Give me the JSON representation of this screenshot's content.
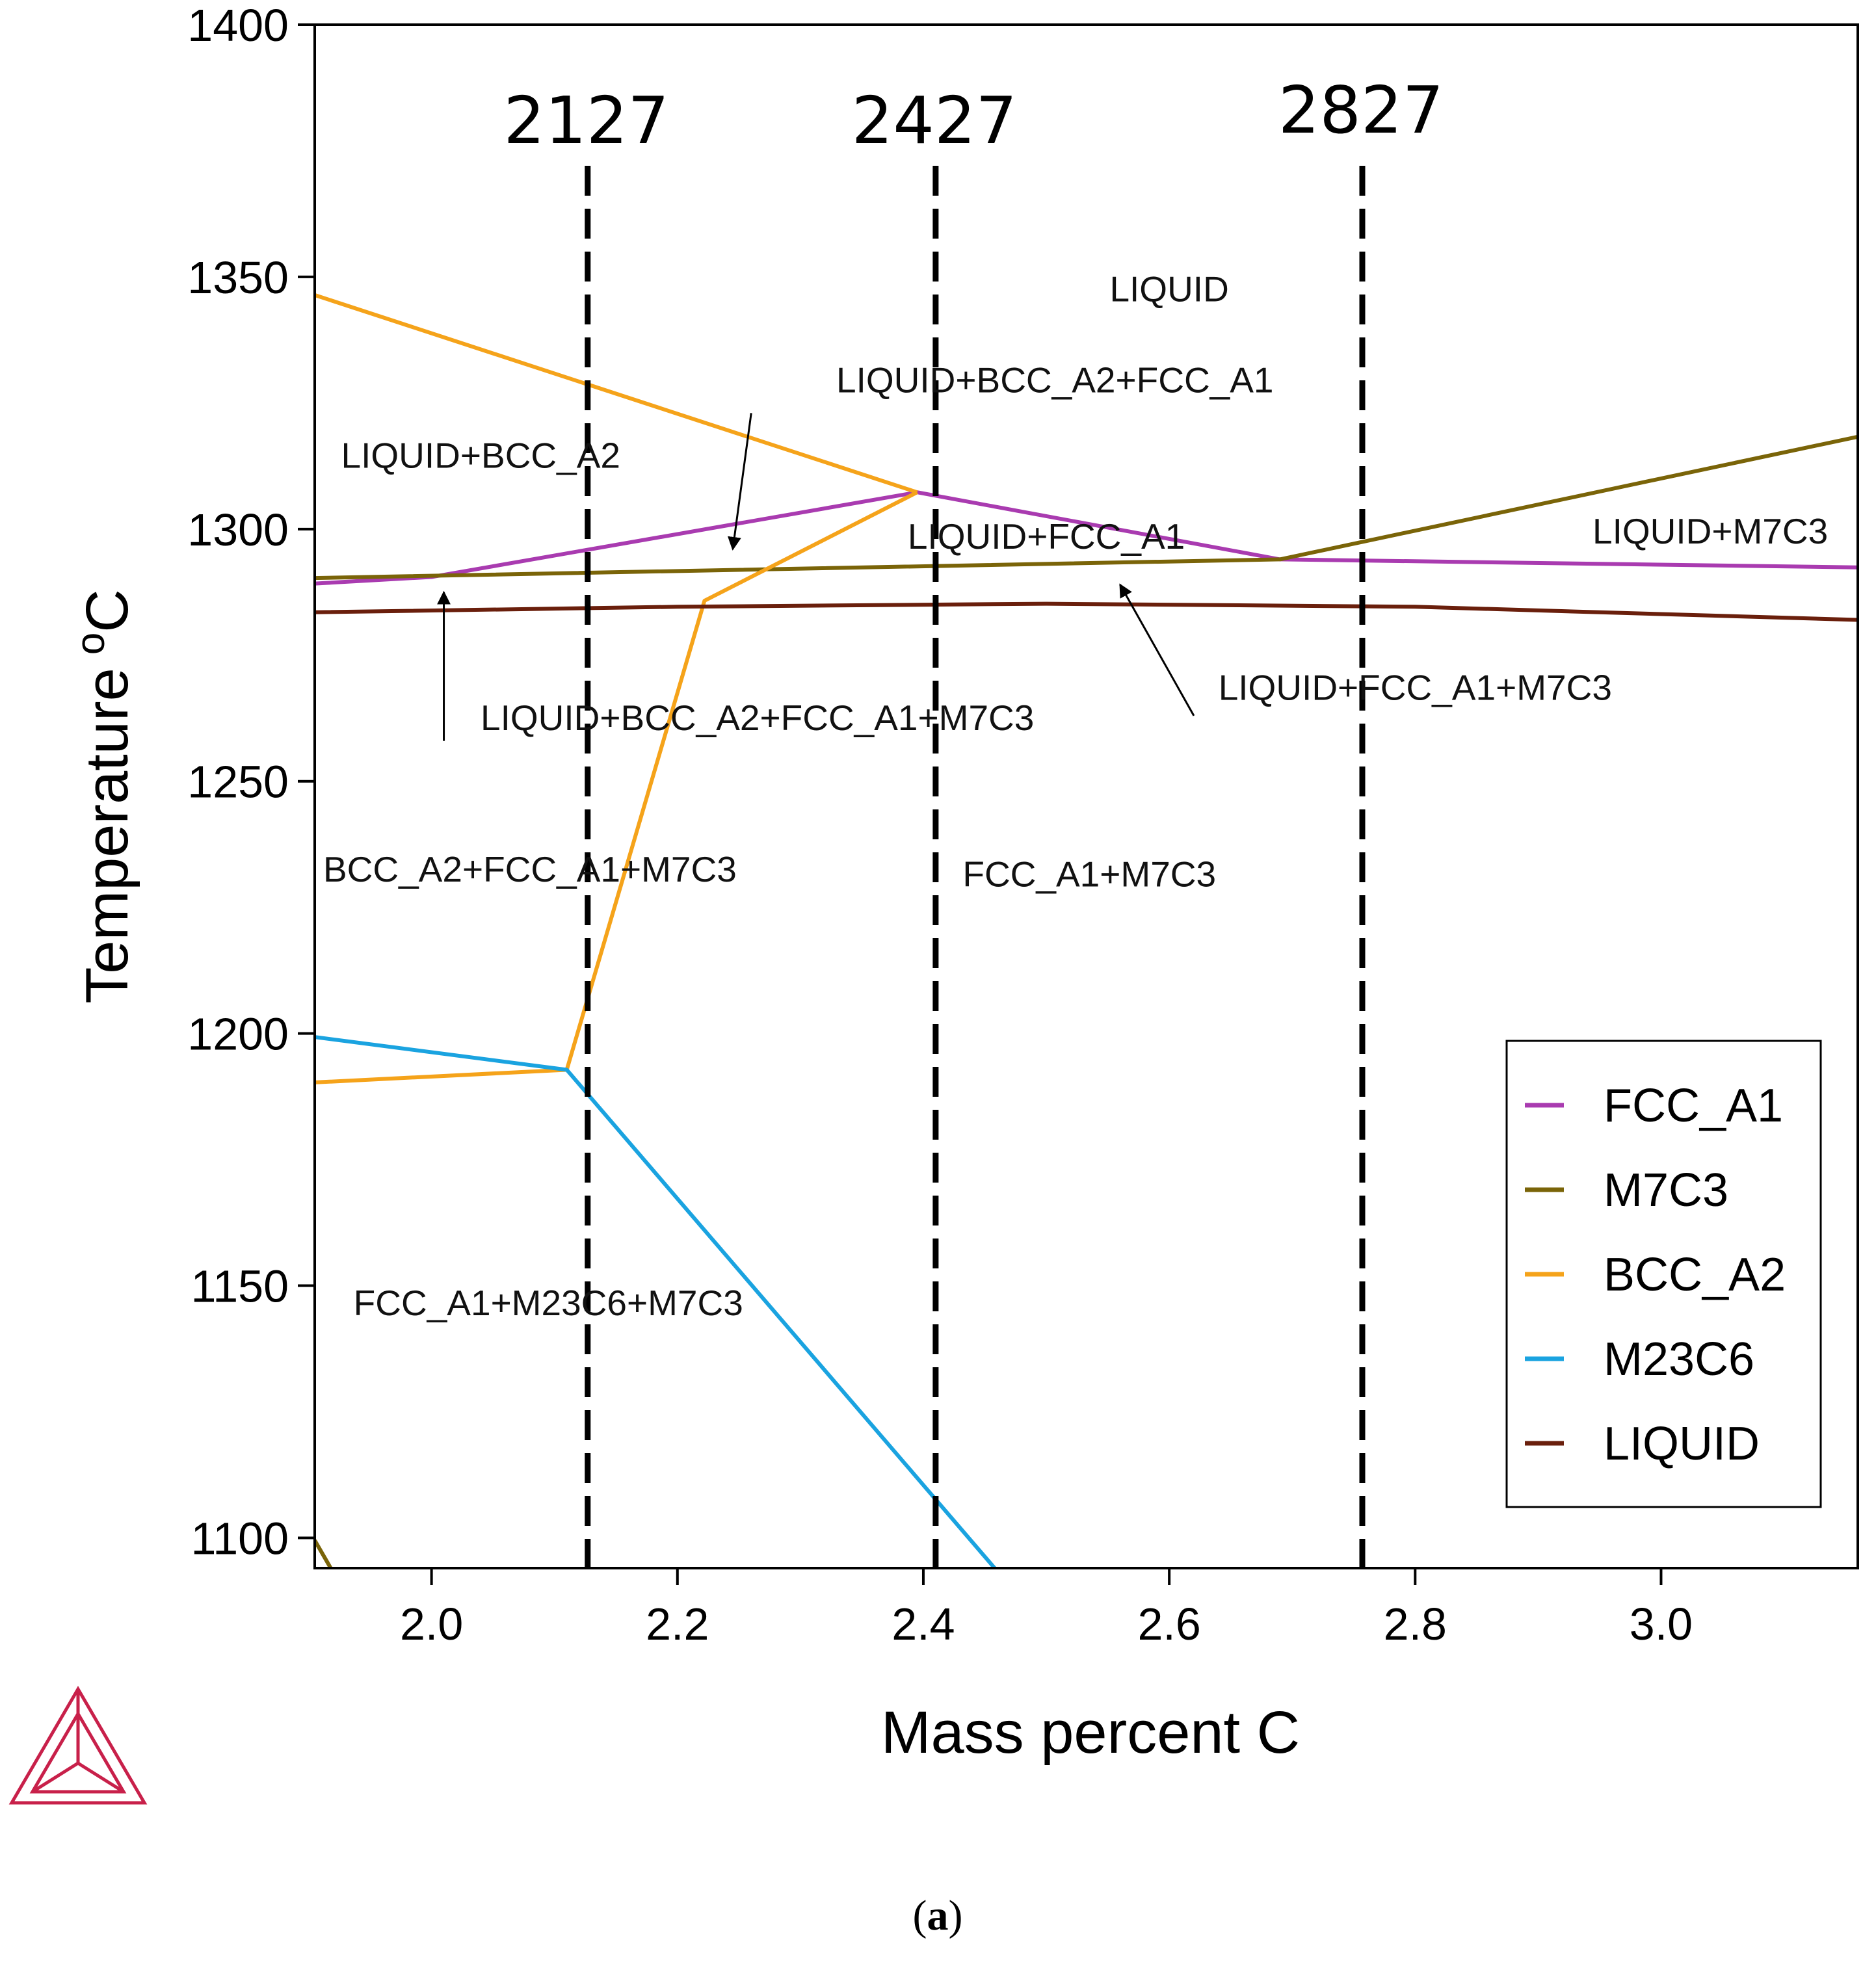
{
  "caption": {
    "open": "(",
    "letter": "a",
    "close": ")"
  },
  "chart_data": {
    "type": "line",
    "title": "",
    "xlabel": "Mass percent C",
    "ylabel": "Temperature",
    "ylabel_unit_sup": "o",
    "ylabel_unit": "C",
    "xlim": [
      1.905,
      3.16
    ],
    "ylim": [
      1094,
      1400
    ],
    "xticks": [
      2.0,
      2.2,
      2.4,
      2.6,
      2.8,
      3.0
    ],
    "xtick_labels": [
      "2.0",
      "2.2",
      "2.4",
      "2.6",
      "2.8",
      "3.0"
    ],
    "yticks": [
      1100,
      1150,
      1200,
      1250,
      1300,
      1350,
      1400
    ],
    "ytick_labels": [
      "1100",
      "1150",
      "1200",
      "1250",
      "1300",
      "1350",
      "1400"
    ],
    "series": [
      {
        "name": "FCC_A1",
        "color": "#a93bb0",
        "segments": [
          [
            [
              1.905,
              1289.2
            ],
            [
              2.0,
              1290.5
            ],
            [
              2.395,
              1307.3
            ],
            [
              2.69,
              1294.0
            ],
            [
              3.16,
              1292.4
            ]
          ]
        ]
      },
      {
        "name": "M7C3",
        "color": "#7a6408",
        "segments": [
          [
            [
              1.905,
              1290.3
            ],
            [
              2.69,
              1294.0
            ],
            [
              3.16,
              1318.3
            ]
          ],
          [
            [
              1.905,
              1099.5
            ],
            [
              1.918,
              1094
            ]
          ]
        ]
      },
      {
        "name": "BCC_A2",
        "color": "#f5a31a",
        "segments": [
          [
            [
              1.905,
              1346.4
            ],
            [
              2.395,
              1307.3
            ]
          ],
          [
            [
              2.395,
              1307.3
            ],
            [
              2.222,
              1285.8
            ],
            [
              2.11,
              1192.8
            ]
          ],
          [
            [
              1.905,
              1190.3
            ],
            [
              2.11,
              1192.8
            ]
          ]
        ]
      },
      {
        "name": "M23C6",
        "color": "#1aa3e0",
        "segments": [
          [
            [
              1.905,
              1199.3
            ],
            [
              2.11,
              1192.8
            ],
            [
              2.458,
              1094
            ]
          ]
        ]
      },
      {
        "name": "LIQUID",
        "color": "#6a1f0c",
        "segments": [
          [
            [
              1.905,
              1283.5
            ],
            [
              2.2,
              1284.6
            ],
            [
              2.5,
              1285.2
            ],
            [
              2.8,
              1284.6
            ],
            [
              3.16,
              1282.0
            ]
          ]
        ]
      }
    ],
    "vertical_lines": [
      {
        "x": 2.127,
        "label": "2127"
      },
      {
        "x": 2.41,
        "label": "2427"
      },
      {
        "x": 2.757,
        "label": "2827"
      }
    ],
    "annotations": [
      {
        "text": "LIQUID",
        "x": 2.6,
        "y": 1347
      },
      {
        "text": "LIQUID+BCC_A2+FCC_A1",
        "x": 2.507,
        "y": 1329
      },
      {
        "text": "LIQUID+BCC_A2",
        "x": 2.04,
        "y": 1314
      },
      {
        "text": "LIQUID+FCC_A1",
        "x": 2.5,
        "y": 1298
      },
      {
        "text": "LIQUID+M7C3",
        "x": 3.04,
        "y": 1299
      },
      {
        "text": "LIQUID+BCC_A2+FCC_A1+M7C3",
        "x": 2.265,
        "y": 1262
      },
      {
        "text": "LIQUID+FCC_A1+M7C3",
        "x": 2.8,
        "y": 1268
      },
      {
        "text": "BCC_A2+FCC_A1+M7C3",
        "x": 2.08,
        "y": 1232
      },
      {
        "text": "FCC_A1+M7C3",
        "x": 2.535,
        "y": 1231
      },
      {
        "text": "FCC_A1+M23C6+M7C3",
        "x": 2.095,
        "y": 1146
      }
    ],
    "arrows": [
      {
        "from": [
          2.26,
          1323
        ],
        "to": [
          2.245,
          1296
        ]
      },
      {
        "from": [
          2.01,
          1258
        ],
        "to": [
          2.01,
          1287.5
        ]
      },
      {
        "from": [
          2.62,
          1263
        ],
        "to": [
          2.56,
          1289
        ]
      }
    ],
    "legend": {
      "position": "bottom-right",
      "entries": [
        "FCC_A1",
        "M7C3",
        "BCC_A2",
        "M23C6",
        "LIQUID"
      ]
    }
  },
  "logo": {
    "name": "triangle-logo",
    "color": "#c8204a"
  }
}
